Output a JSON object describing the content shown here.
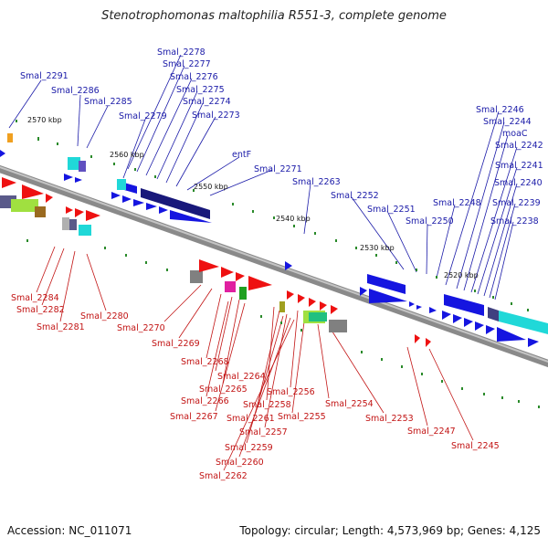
{
  "title": "Stenotrophomonas maltophilia R551-3, complete genome",
  "footer": {
    "accession": "Accession: NC_011071",
    "summary": "Topology: circular; Length: 4,573,969 bp; Genes: 4,125"
  },
  "colors": {
    "forward_gene": "#1515e0",
    "reverse_gene": "#ee1111",
    "top_label": "#1a1aa8",
    "bottom_label": "#c21414",
    "backbone": "#8a8a8a",
    "tick": "#2a8a2a"
  },
  "scale_marks": [
    {
      "label": "2570 kbp"
    },
    {
      "label": "2560 kbp"
    },
    {
      "label": "2550 kbp"
    },
    {
      "label": "2540 kbp"
    },
    {
      "label": "2530 kbp"
    },
    {
      "label": "2520 kbp"
    }
  ],
  "top_labels": [
    "Smal_2291",
    "Smal_2286",
    "Smal_2285",
    "Smal_2278",
    "Smal_2277",
    "Smal_2276",
    "Smal_2279",
    "Smal_2275",
    "Smal_2274",
    "Smal_2273",
    "entF",
    "Smal_2271",
    "Smal_2263",
    "Smal_2252",
    "Smal_2251",
    "Smal_2250",
    "Smal_2248",
    "Smal_2246",
    "Smal_2244",
    "moaC",
    "Smal_2242",
    "Smal_2241",
    "Smal_2240",
    "Smal_2239",
    "Smal_2238"
  ],
  "bottom_labels": [
    "Smal_2284",
    "Smal_2282",
    "Smal_2281",
    "Smal_2280",
    "Smal_2270",
    "Smal_2269",
    "Smal_2268",
    "Smal_2264",
    "Smal_2265",
    "Smal_2266",
    "Smal_2267",
    "Smal_2258",
    "Smal_2256",
    "Smal_2261",
    "Smal_2255",
    "Smal_2257",
    "Smal_2259",
    "Smal_2260",
    "Smal_2262",
    "Smal_2254",
    "Smal_2253",
    "Smal_2247",
    "Smal_2245"
  ]
}
